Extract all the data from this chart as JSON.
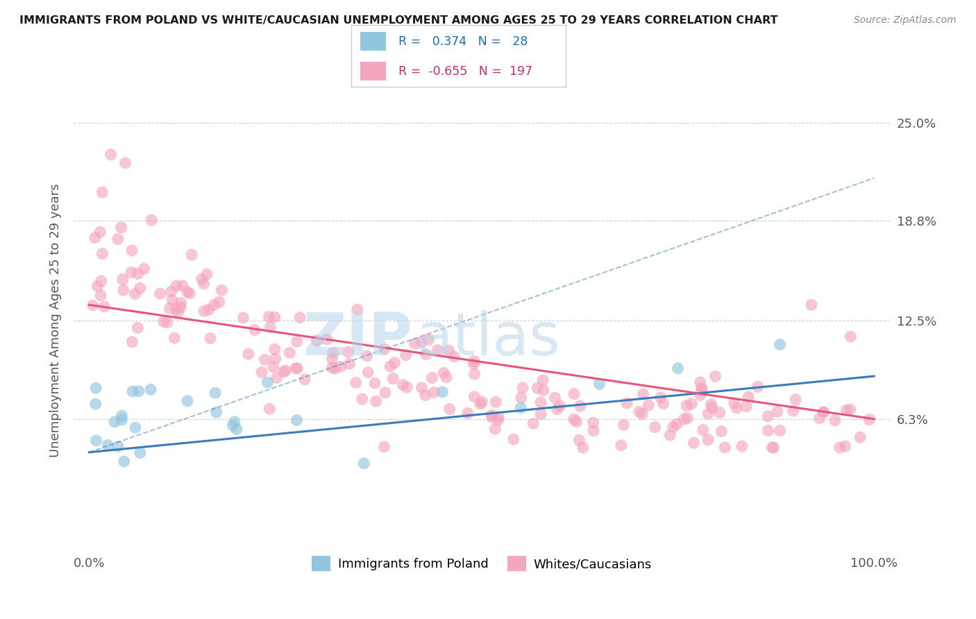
{
  "title": "IMMIGRANTS FROM POLAND VS WHITE/CAUCASIAN UNEMPLOYMENT AMONG AGES 25 TO 29 YEARS CORRELATION CHART",
  "source": "Source: ZipAtlas.com",
  "ylabel": "Unemployment Among Ages 25 to 29 years",
  "legend_blue_r": "0.374",
  "legend_blue_n": "28",
  "legend_pink_r": "-0.655",
  "legend_pink_n": "197",
  "blue_color": "#92c5de",
  "pink_color": "#f4a6bc",
  "blue_line_color": "#3a7abf",
  "pink_line_color": "#e8537a",
  "grid_color": "#d0d0d0",
  "watermark_zip": "ZIP",
  "watermark_atlas": "atlas",
  "watermark_zip_color": "#c8ddf0",
  "watermark_atlas_color": "#c8ddf0",
  "blue_trend_start_y": 4.2,
  "blue_trend_end_y": 9.0,
  "pink_trend_start_y": 13.5,
  "pink_trend_end_y": 6.3,
  "dashed_line_start_y": 4.2,
  "dashed_line_end_y": 21.5,
  "ylim_min": -2,
  "ylim_max": 27,
  "xlim_min": -2,
  "xlim_max": 102
}
